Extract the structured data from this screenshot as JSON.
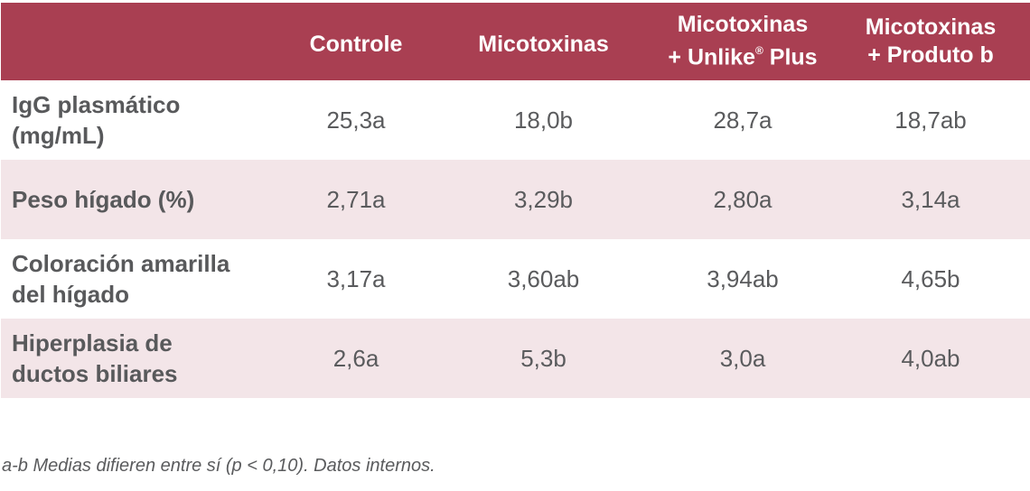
{
  "table": {
    "header": {
      "col0": "",
      "col1": "Controle",
      "col2": "Micotoxinas",
      "col3_line1": "Micotoxinas",
      "col3_line2_prefix": "+ Unlike",
      "col3_reg": "®",
      "col3_line2_suffix": " Plus",
      "col4_line1": "Micotoxinas",
      "col4_line2": "+ Produto b"
    },
    "rows": [
      {
        "label_line1": "IgG plasmático",
        "label_line2": "(mg/mL)",
        "values": [
          "25,3a",
          "18,0b",
          "28,7a",
          "18,7ab"
        ]
      },
      {
        "label_line1": "Peso hígado (%)",
        "label_line2": "",
        "values": [
          "2,71a",
          "3,29b",
          "2,80a",
          "3,14a"
        ]
      },
      {
        "label_line1": "Coloración amarilla",
        "label_line2": "del hígado",
        "values": [
          "3,17a",
          "3,60ab",
          "3,94ab",
          "4,65b"
        ]
      },
      {
        "label_line1": "Hiperplasia de",
        "label_line2": "ductos biliares",
        "values": [
          "2,6a",
          "5,3b",
          "3,0a",
          "4,0ab"
        ]
      }
    ]
  },
  "footnote": "a-b Medias difieren entre sí (p < 0,10). Datos internos.",
  "colors": {
    "header_bg": "#a93f52",
    "alt_row_bg": "#f3e5e8",
    "text": "#58595b"
  }
}
